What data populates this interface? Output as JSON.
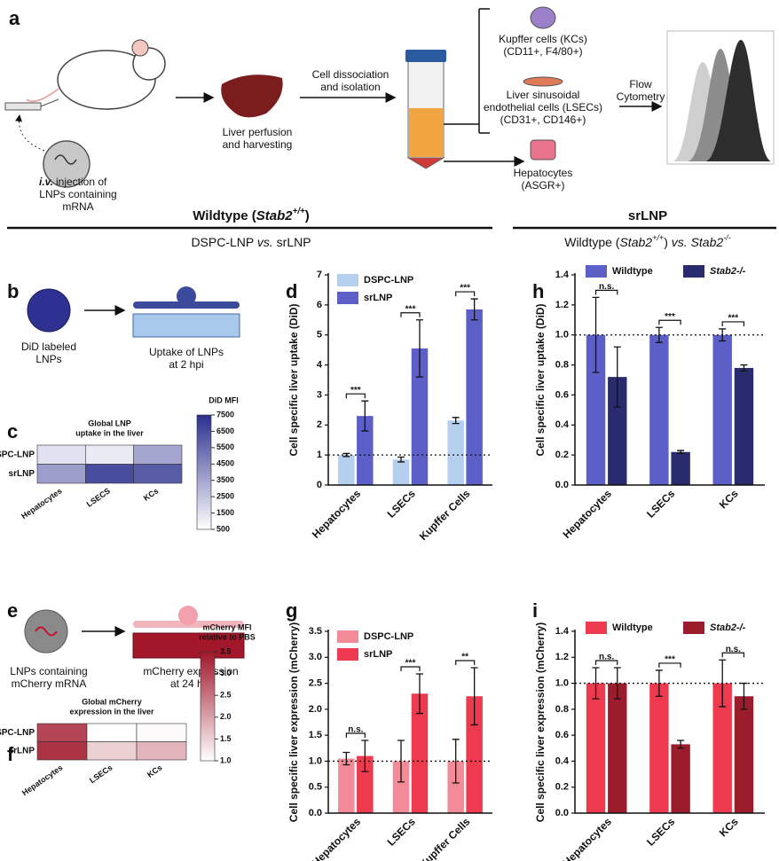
{
  "panel_labels": [
    "a",
    "b",
    "c",
    "d",
    "e",
    "f",
    "g",
    "h",
    "i"
  ],
  "schematic_a": {
    "injection_emph": "i.v.",
    "injection": [
      "injection of",
      "LNPs containing",
      "mRNA"
    ],
    "perfusion": [
      "Liver perfusion",
      "and harvesting"
    ],
    "dissociation": [
      "Cell dissociation",
      "and isolation"
    ],
    "kupffer": [
      "Kupffer cells (KCs)",
      "(CD11+, F4/80+)"
    ],
    "lsec": [
      "Liver sinusoidal",
      "endothelial cells (LSECs)",
      "(CD31+, CD146+)"
    ],
    "hepatocytes": [
      "Hepatocytes",
      "(ASGR+)"
    ],
    "flow": [
      "Flow",
      "Cytometry"
    ]
  },
  "sections": {
    "left_title": [
      "Wildtype (",
      "Stab2",
      "+/+",
      ")"
    ],
    "left_subtitle": [
      "DSPC-LNP ",
      "vs.",
      " srLNP"
    ],
    "right_title": "srLNP",
    "right_subtitle": [
      "Wildtype (",
      "Stab2",
      "+/+",
      ") ",
      "vs.",
      " Stab2",
      "-/-"
    ]
  },
  "schematic_b": {
    "particle": [
      "DiD labeled",
      "LNPs"
    ],
    "result": [
      "Uptake of LNPs",
      "at 2 hpi"
    ]
  },
  "schematic_e": {
    "particle": [
      "LNPs containing",
      "mCherry mRNA"
    ],
    "result": [
      "mCherry expression",
      "at 24 hpi"
    ]
  },
  "chart_data": [
    {
      "type": "heatmap",
      "title": [
        "Global LNP",
        "uptake in the liver"
      ],
      "rows": [
        "DSPC-LNP",
        "srLNP"
      ],
      "columns": [
        "Hepatocytes",
        "LSECS",
        "KCs"
      ],
      "values": [
        [
          1500,
          1200,
          3500
        ],
        [
          3800,
          6500,
          6000
        ]
      ],
      "colorbar_label": [
        "DiD MFI"
      ],
      "zlim": [
        500,
        7500
      ],
      "zticks": [
        500,
        1500,
        2500,
        3500,
        4500,
        5500,
        6500,
        7500
      ],
      "colors": [
        "#ffffff",
        "#2b2f8f"
      ]
    },
    {
      "type": "bar",
      "ylabel": "Cell specific liver uptake (DiD)",
      "categories": [
        "Hepatocytes",
        "LSECs",
        "Kupffer Cells"
      ],
      "series": [
        {
          "name": "DSPC-LNP",
          "color": "#b5d0ee",
          "values": [
            1.0,
            0.85,
            2.15
          ],
          "errors": [
            0.05,
            0.08,
            0.1
          ]
        },
        {
          "name": "srLNP",
          "color": "#5b5fc7",
          "values": [
            2.3,
            4.55,
            5.85
          ],
          "errors": [
            0.5,
            0.95,
            0.35
          ]
        }
      ],
      "ylim": [
        0,
        7
      ],
      "yticks": [
        0,
        1,
        2,
        3,
        4,
        5,
        6,
        7
      ],
      "significance": [
        "***",
        "***",
        "***"
      ],
      "reference_line": 1,
      "legend": "upper left"
    },
    {
      "type": "bar",
      "ylabel": "Cell specific liver uptake (DiD)",
      "categories": [
        "Hepatocytes",
        "LSECs",
        "KCs"
      ],
      "series": [
        {
          "name": "Wildtype",
          "color": "#5b5fc7",
          "values": [
            1.0,
            1.0,
            1.0
          ],
          "errors": [
            0.25,
            0.05,
            0.04
          ]
        },
        {
          "name": "Stab2-/-",
          "color": "#2a2a6e",
          "values": [
            0.72,
            0.22,
            0.78
          ],
          "errors": [
            0.2,
            0.01,
            0.02
          ]
        }
      ],
      "ylim": [
        0,
        1.4
      ],
      "yticks": [
        {
          "value": 0,
          "label": "0.0"
        },
        0.2,
        0.4,
        0.6,
        0.8,
        {
          "value": 1,
          "label": "1.0"
        },
        1.2,
        1.4
      ],
      "significance": [
        "n.s.",
        "***",
        "***"
      ],
      "reference_line": 1,
      "legend": "top"
    },
    {
      "type": "heatmap",
      "title": [
        "Global mCherry",
        "expression in the liver"
      ],
      "rows": [
        "DSPC-LNP",
        "srLNP"
      ],
      "columns": [
        "Hepatocytes",
        "LSECs",
        "KCs"
      ],
      "values": [
        [
          3.0,
          1.0,
          1.05
        ],
        [
          3.2,
          1.5,
          1.8
        ]
      ],
      "colorbar_label": [
        "mCherry MFI",
        "relative to PBS"
      ],
      "zlim": [
        1,
        3.5
      ],
      "zticks": [
        {
          "value": 1,
          "label": "1.0"
        },
        1.5,
        {
          "value": 2,
          "label": "2.0"
        },
        2.5,
        {
          "value": 3,
          "label": "3.0"
        },
        3.5
      ],
      "colors": [
        "#ffffff",
        "#a0172a"
      ]
    },
    {
      "type": "bar",
      "ylabel": "Cell specific liver expression (mCherry)",
      "categories": [
        "Hepatocytes",
        "LSECs",
        "Kupffer Cells"
      ],
      "series": [
        {
          "name": "DSPC-LNP",
          "color": "#f28b97",
          "values": [
            1.05,
            1.0,
            1.0
          ],
          "errors": [
            0.12,
            0.4,
            0.42
          ]
        },
        {
          "name": "srLNP",
          "color": "#ee3a4e",
          "values": [
            1.1,
            2.3,
            2.25
          ],
          "errors": [
            0.3,
            0.38,
            0.55
          ]
        }
      ],
      "ylim": [
        0,
        3.5
      ],
      "yticks": [
        {
          "value": 0,
          "label": "0.0"
        },
        0.5,
        {
          "value": 1,
          "label": "1.0"
        },
        1.5,
        {
          "value": 2,
          "label": "2.0"
        },
        2.5,
        {
          "value": 3,
          "label": "3.0"
        },
        3.5
      ],
      "significance": [
        "n.s.",
        "***",
        "**"
      ],
      "reference_line": 1,
      "legend": "upper left"
    },
    {
      "type": "bar",
      "ylabel": "Cell specific liver expression (mCherry)",
      "categories": [
        "Hepatocytes",
        "LSECs",
        "KCs"
      ],
      "series": [
        {
          "name": "Wildtype",
          "color": "#ee3a4e",
          "values": [
            1.0,
            1.0,
            1.0
          ],
          "errors": [
            0.12,
            0.1,
            0.18
          ]
        },
        {
          "name": "Stab2-/-",
          "color": "#9b1c2b",
          "values": [
            1.0,
            0.53,
            0.9
          ],
          "errors": [
            0.12,
            0.03,
            0.1
          ]
        }
      ],
      "ylim": [
        0,
        1.4
      ],
      "yticks": [
        {
          "value": 0,
          "label": "0.0"
        },
        0.2,
        0.4,
        0.6,
        0.8,
        {
          "value": 1,
          "label": "1.0"
        },
        1.2,
        1.4
      ],
      "significance": [
        "n.s.",
        "***",
        "n.s."
      ],
      "reference_line": 1,
      "legend": "top"
    }
  ]
}
